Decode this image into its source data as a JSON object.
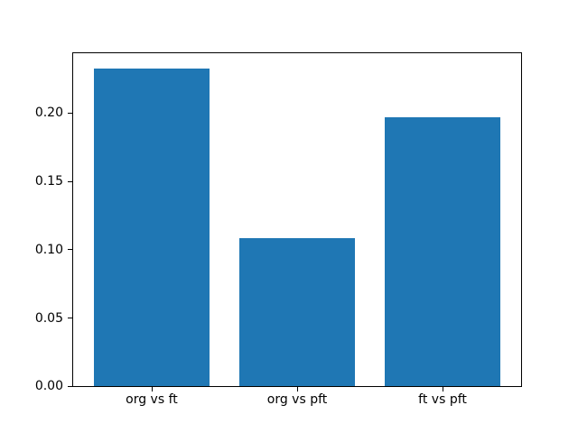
{
  "figure": {
    "background": "#ffffff"
  },
  "chart_data": {
    "type": "bar",
    "title": "",
    "xlabel": "",
    "ylabel": "",
    "categories": [
      "org vs ft",
      "org vs pft",
      "ft vs pft"
    ],
    "values": [
      0.2326,
      0.1084,
      0.1968
    ],
    "bar_color": "#1f77b4",
    "bar_width": 0.8,
    "xlim": [
      -0.54,
      2.54
    ],
    "ylim": [
      0,
      0.2442
    ],
    "yticks": [
      0.0,
      0.05,
      0.1,
      0.15,
      0.2
    ],
    "ytick_labels": [
      "0.00",
      "0.05",
      "0.10",
      "0.15",
      "0.20"
    ],
    "grid": false,
    "legend": "none",
    "axis_color": "#000000",
    "text_color": "#000000"
  }
}
